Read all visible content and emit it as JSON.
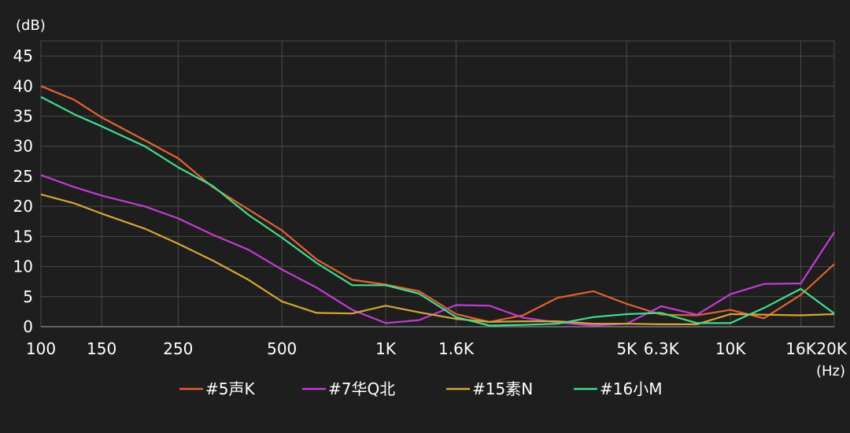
{
  "chart_data": {
    "type": "line",
    "ylabel": "(dB)",
    "xlabel": "(Hz)",
    "x_scale": "log",
    "xlim": [
      100,
      20000
    ],
    "ylim": [
      0,
      47.5
    ],
    "y_ticks": [
      0,
      5,
      10,
      15,
      20,
      25,
      30,
      35,
      40,
      45
    ],
    "x_tick_labels": [
      {
        "value": 100,
        "label": "100"
      },
      {
        "value": 150,
        "label": "150"
      },
      {
        "value": 250,
        "label": "250"
      },
      {
        "value": 500,
        "label": "500"
      },
      {
        "value": 1000,
        "label": "1K"
      },
      {
        "value": 1600,
        "label": "1.6K"
      },
      {
        "value": 5000,
        "label": "5K"
      },
      {
        "value": 6300,
        "label": "6.3K"
      },
      {
        "value": 10000,
        "label": "10K"
      },
      {
        "value": 16000,
        "label": "16K"
      },
      {
        "value": 20000,
        "label": "20K"
      }
    ],
    "x_gridlines": [
      100,
      150,
      250,
      500,
      1000,
      1600,
      5000,
      10000,
      16000,
      20000
    ],
    "grid": true,
    "legend_position": "bottom",
    "x": [
      100,
      125,
      150,
      200,
      250,
      315,
      400,
      500,
      630,
      800,
      1000,
      1250,
      1600,
      2000,
      2500,
      3150,
      4000,
      5000,
      6300,
      8000,
      10000,
      12500,
      16000,
      20000
    ],
    "series": [
      {
        "name": "#5声K",
        "color": "#e8612c",
        "values": [
          40,
          37.7,
          34.8,
          31,
          28,
          23.2,
          19.5,
          16,
          11.2,
          7.8,
          7,
          5.9,
          2.1,
          0.8,
          1.9,
          4.8,
          5.9,
          3.8,
          2,
          1.9,
          2.8,
          1.4,
          5.3,
          10.4
        ]
      },
      {
        "name": "#7华Q北",
        "color": "#c43ad6",
        "values": [
          25.2,
          23.2,
          21.8,
          20,
          18,
          15.3,
          12.8,
          9.5,
          6.5,
          2.8,
          0.6,
          1.1,
          3.6,
          3.5,
          1.5,
          0.7,
          0.2,
          0.5,
          3.4,
          2,
          5.4,
          7.1,
          7.2,
          15.7
        ]
      },
      {
        "name": "#15素N",
        "color": "#d4a731",
        "values": [
          22,
          20.5,
          18.8,
          16.3,
          13.8,
          11,
          7.8,
          4.2,
          2.3,
          2.2,
          3.5,
          2.4,
          1.3,
          0.8,
          0.9,
          0.9,
          0.5,
          0.5,
          0.4,
          0.4,
          2.1,
          2,
          1.9,
          2.1
        ]
      },
      {
        "name": "#16小M",
        "color": "#3ddf8e",
        "values": [
          38.2,
          35.3,
          33.3,
          30,
          26.5,
          23.4,
          18.6,
          14.8,
          10.6,
          6.9,
          6.9,
          5.5,
          1.6,
          0.2,
          0.3,
          0.5,
          1.6,
          2.1,
          2.3,
          0.6,
          0.6,
          3.1,
          6.3,
          2.2
        ]
      }
    ]
  }
}
